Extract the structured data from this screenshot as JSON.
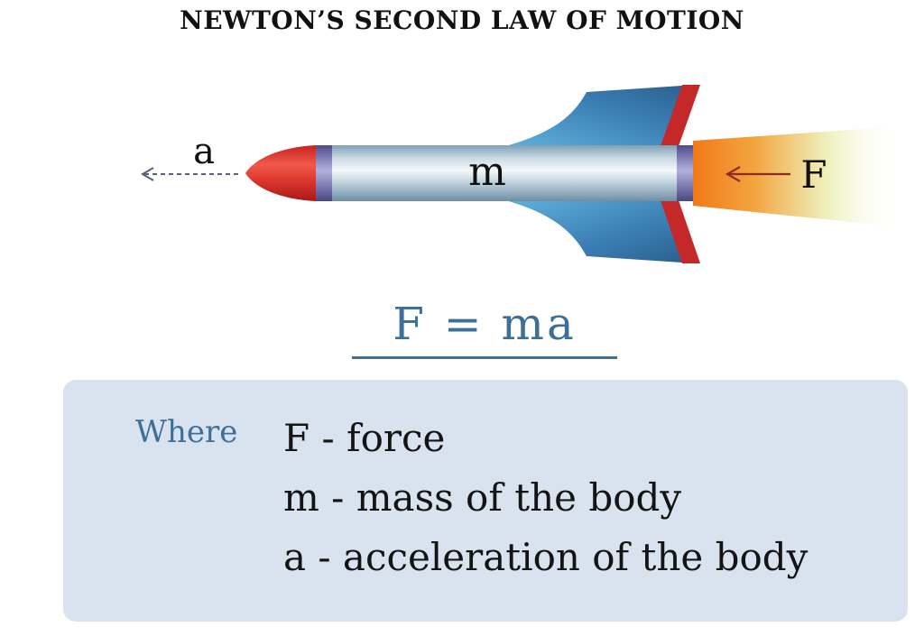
{
  "title": "NEWTON’S SECOND LAW OF MOTION",
  "diagram": {
    "acceleration_label": "a",
    "mass_label": "m",
    "force_label": "F"
  },
  "formula": "F = ma",
  "legend": {
    "where_label": "Where",
    "items": [
      "F - force",
      "m - mass of the body",
      "a - acceleration of the body"
    ]
  },
  "colors": {
    "accent_blue": "#3d6f99",
    "legend_bg": "#d8e3ef",
    "nose_red": "#d8342e",
    "fin_blue": "#2f6d9e",
    "fin_edge_red": "#c42828",
    "body_steel": "#b8cdd8",
    "band_purple": "#6a68a8",
    "flame_orange": "#f07f1e",
    "flame_yellow": "#f2f0b0",
    "force_arrow": "#8e2a2a",
    "accel_arrow": "#59627a"
  }
}
